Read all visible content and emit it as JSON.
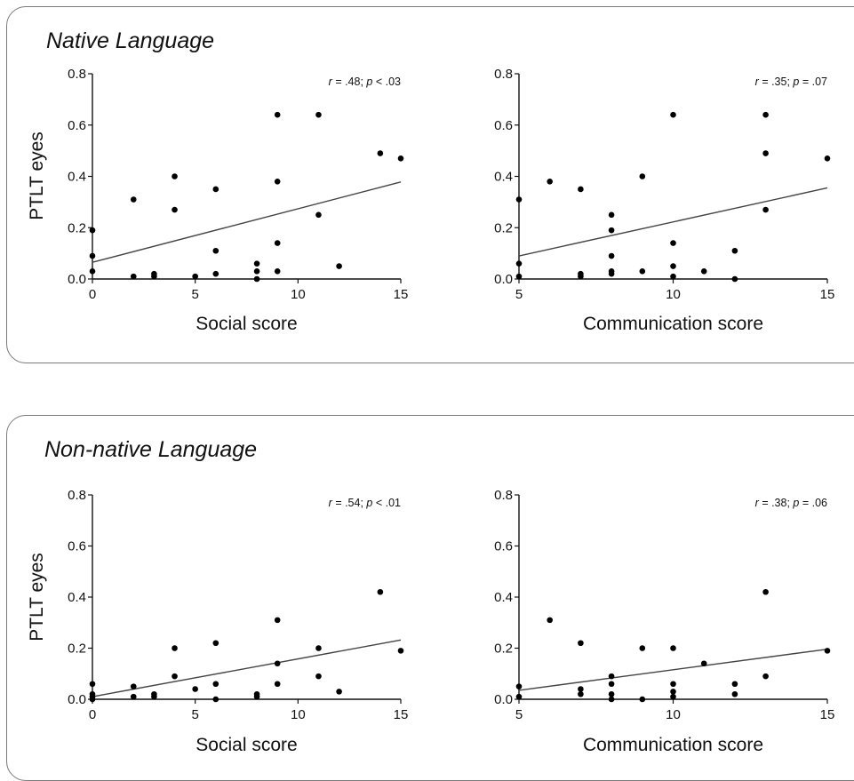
{
  "panels": [
    {
      "title": "Native Language"
    },
    {
      "title": "Non-native Language"
    }
  ],
  "chart_data": [
    {
      "type": "scatter",
      "panel": "Native Language",
      "xlabel": "Social score",
      "ylabel": "PTLT eyes",
      "xlim": [
        0,
        15
      ],
      "ylim": [
        0,
        0.8
      ],
      "xticks": [
        "0",
        "5",
        "10",
        "15"
      ],
      "yticks": [
        "0.0",
        "0.2",
        "0.4",
        "0.6",
        "0.8"
      ],
      "stats": {
        "r": ".48",
        "p": ".03",
        "p_op": "<"
      },
      "fit_line": {
        "x": [
          0,
          15
        ],
        "y": [
          0.065,
          0.378
        ]
      },
      "x": [
        0,
        0,
        0,
        2,
        2,
        3,
        3,
        4,
        4,
        5,
        6,
        6,
        6,
        8,
        8,
        8,
        9,
        9,
        9,
        9,
        11,
        11,
        12,
        14,
        15
      ],
      "y": [
        0.19,
        0.09,
        0.03,
        0.31,
        0.01,
        0.02,
        0.01,
        0.4,
        0.27,
        0.01,
        0.35,
        0.11,
        0.02,
        0.06,
        0.03,
        0.0,
        0.64,
        0.38,
        0.14,
        0.03,
        0.64,
        0.25,
        0.05,
        0.49,
        0.47
      ]
    },
    {
      "type": "scatter",
      "panel": "Native Language",
      "xlabel": "Communication score",
      "ylabel": "",
      "xlim": [
        5,
        15
      ],
      "ylim": [
        0,
        0.8
      ],
      "xticks": [
        "5",
        "10",
        "15"
      ],
      "yticks": [
        "0.0",
        "0.2",
        "0.4",
        "0.6",
        "0.8"
      ],
      "stats": {
        "r": ".35",
        "p": ".07",
        "p_op": "="
      },
      "fit_line": {
        "x": [
          5,
          15
        ],
        "y": [
          0.09,
          0.355
        ]
      },
      "x": [
        5,
        5,
        5,
        6,
        7,
        7,
        7,
        8,
        8,
        8,
        8,
        8,
        9,
        9,
        10,
        10,
        10,
        10,
        11,
        12,
        12,
        13,
        13,
        13,
        15
      ],
      "y": [
        0.31,
        0.06,
        0.01,
        0.38,
        0.35,
        0.02,
        0.01,
        0.25,
        0.19,
        0.09,
        0.03,
        0.02,
        0.4,
        0.03,
        0.64,
        0.14,
        0.05,
        0.01,
        0.03,
        0.11,
        0.0,
        0.64,
        0.49,
        0.27,
        0.47
      ]
    },
    {
      "type": "scatter",
      "panel": "Non-native Language",
      "xlabel": "Social score",
      "ylabel": "PTLT eyes",
      "xlim": [
        0,
        15
      ],
      "ylim": [
        0,
        0.8
      ],
      "xticks": [
        "0",
        "5",
        "10",
        "15"
      ],
      "yticks": [
        "0.0",
        "0.2",
        "0.4",
        "0.6",
        "0.8"
      ],
      "stats": {
        "r": ".54",
        "p": ".01",
        "p_op": "<"
      },
      "fit_line": {
        "x": [
          0,
          15
        ],
        "y": [
          0.01,
          0.232
        ]
      },
      "x": [
        0,
        0,
        0,
        0,
        2,
        2,
        3,
        3,
        4,
        4,
        5,
        6,
        6,
        6,
        8,
        8,
        9,
        9,
        9,
        11,
        11,
        12,
        14,
        15
      ],
      "y": [
        0.06,
        0.02,
        0.01,
        0.0,
        0.05,
        0.01,
        0.02,
        0.01,
        0.2,
        0.09,
        0.04,
        0.22,
        0.06,
        0.0,
        0.02,
        0.01,
        0.31,
        0.14,
        0.06,
        0.2,
        0.09,
        0.03,
        0.42,
        0.19
      ]
    },
    {
      "type": "scatter",
      "panel": "Non-native Language",
      "xlabel": "Communication score",
      "ylabel": "",
      "xlim": [
        5,
        15
      ],
      "ylim": [
        0,
        0.8
      ],
      "xticks": [
        "5",
        "10",
        "15"
      ],
      "yticks": [
        "0.0",
        "0.2",
        "0.4",
        "0.6",
        "0.8"
      ],
      "stats": {
        "r": ".38",
        "p": ".06",
        "p_op": "="
      },
      "fit_line": {
        "x": [
          5,
          15
        ],
        "y": [
          0.035,
          0.196
        ]
      },
      "x": [
        5,
        5,
        6,
        7,
        7,
        7,
        8,
        8,
        8,
        8,
        9,
        9,
        10,
        10,
        10,
        10,
        11,
        12,
        12,
        13,
        13,
        15
      ],
      "y": [
        0.05,
        0.01,
        0.31,
        0.22,
        0.04,
        0.02,
        0.09,
        0.06,
        0.02,
        0.0,
        0.2,
        0.0,
        0.2,
        0.06,
        0.03,
        0.01,
        0.14,
        0.06,
        0.02,
        0.42,
        0.09,
        0.19
      ]
    }
  ]
}
